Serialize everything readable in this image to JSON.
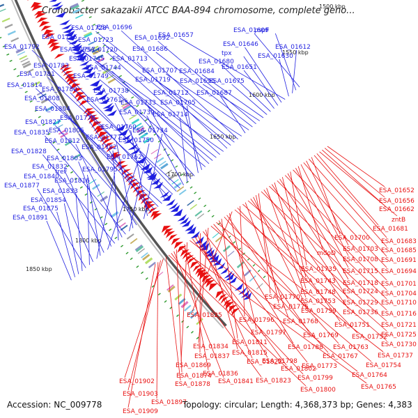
{
  "title": "Cronobacter sakazakii ATCC BAA-894 chromosome, complete geno...",
  "footer": {
    "accession": "Accession: NC_009778",
    "summary": "Topology: circular; Length: 4,368,373 bp; Genes: 4,383"
  },
  "colors": {
    "forward_strand": "#1f1fe0",
    "reverse_strand": "#e81010",
    "backbone": "#888888",
    "tick_green": "#2e9a2e"
  },
  "ticks": [
    {
      "label": "1500 kbp"
    },
    {
      "label": "1550 kbp"
    },
    {
      "label": "1600 kbp"
    },
    {
      "label": "1650 kbp"
    },
    {
      "label": "1700 kbp"
    },
    {
      "label": "1750 kbp"
    },
    {
      "label": "1800 kbp"
    },
    {
      "label": "1850 kbp"
    }
  ],
  "forward_genes": [
    "ESA_01609",
    "pspF",
    "ESA_01612",
    "ESA_01630",
    "ESA_01657",
    "ESA_01646",
    "tpx",
    "ESA_01651",
    "ESA_01680",
    "ESA_01675",
    "ESA_01684",
    "ESA_01695",
    "ESA_01692",
    "ESA_01686",
    "ESA_01707",
    "ESA_01687",
    "ESA_01719",
    "ESA_01696",
    "ESA_01728",
    "ESA_01723",
    "ESA_01713",
    "ESA_01755",
    "ESA_01720",
    "ESA_01757",
    "ESA_01745",
    "ESA_01744",
    "ESA_01749",
    "ESA_01712",
    "ESA_01705",
    "ESA_01738",
    "ESA_01733",
    "ESA_01714",
    "ESA_01739",
    "ESA_01792",
    "ESA_01783",
    "ESA_01781",
    "ESA_01780",
    "ESA_01761",
    "ESA_01814",
    "ESA_01808",
    "ESA_01804",
    "ESA_01778",
    "ESA_01760",
    "ESA_01734",
    "ESA_01827",
    "ESA_01805",
    "ESA_01777",
    "ESA_01750",
    "ESA_01835",
    "ESA_01812",
    "ESA_01782",
    "ESA_01828",
    "ESA_01803",
    "ESA_01762",
    "ESA_01832",
    "treF",
    "ESA_01795",
    "ESA_01840",
    "ESA_01816",
    "ESA_01877",
    "ESA_01833",
    "ESA_01854",
    "ESA_01875",
    "ESA_01891"
  ],
  "reverse_genes": [
    "ESA_01652",
    "ESA_01656",
    "ESA_01662",
    "zntB",
    "ESA_01681",
    "ESA_01683",
    "ESA_01700",
    "ESA_01685",
    "ESA_01703",
    "ESA_01691",
    "ESA_01708",
    "mdoD",
    "ESA_01715",
    "ESA_01694",
    "ESA_01735",
    "ESA_01718",
    "ESA_01701",
    "ESA_01743",
    "ESA_01724",
    "ESA_01704",
    "ESA_01748",
    "ESA_01729",
    "ESA_01710",
    "ESA_01753",
    "ESA_01736",
    "ESA_01716",
    "ESA_01770",
    "ESA_01775",
    "ESA_01759",
    "ESA_01751",
    "ESA_01721",
    "ESA_01768",
    "ESA_01725",
    "ESA_01796",
    "ESA_01752",
    "ESA_01730",
    "ESA_01825",
    "ESA_01797",
    "ESA_01769",
    "ESA_01763",
    "ESA_01811",
    "ESA_01788",
    "ESA_01737",
    "ESA_01767",
    "ESA_01754",
    "ESA_01834",
    "ESA_01815",
    "ESA_01773",
    "ESA_01837",
    "ESA_01822",
    "ESA_01798",
    "ESA_01802",
    "ESA_01764",
    "ESA_01869",
    "ESA_01836",
    "ESA_01799",
    "ESA_01765",
    "ESA_01874",
    "ESA_01841",
    "ESA_01823",
    "ESA_01800",
    "ESA_01878",
    "ESA_01902",
    "ESA_01903",
    "ESA_01897",
    "ESA_01909"
  ]
}
